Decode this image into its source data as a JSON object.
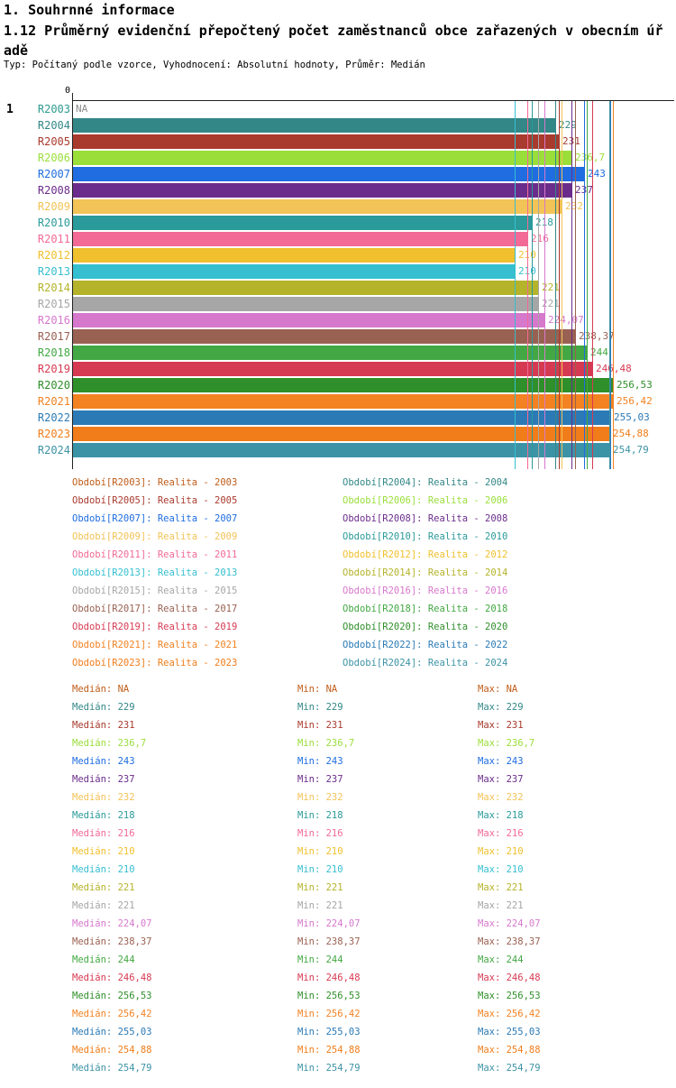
{
  "header": {
    "title": "1. Souhrnné informace",
    "subtitle": "1.12 Průměrný evidenční přepočtený počet zaměstnanců obce zařazených v obecním úřadě",
    "meta": "Typ: Počítaný podle vzorce, Vyhodnocení: Absolutní hodnoty, Průměr: Medián"
  },
  "chart": {
    "index_label": "1",
    "axis_zero_label": "0"
  },
  "stats_labels": {
    "median": "Medián:",
    "min": "Min:",
    "max": "Max:"
  },
  "chart_data": {
    "type": "bar",
    "orientation": "horizontal",
    "title": "1.12 Průměrný evidenční přepočtený počet zaměstnanců obce zařazených v obecním úřadě",
    "xlabel": "",
    "ylabel": "",
    "xlim": [
      0,
      270
    ],
    "x_axis_ticks_visible": [
      "0"
    ],
    "legend_position": "below-two-columns",
    "note": "Medián, Min and Max equal each series value; a vertical marker line is drawn at each value in the series color",
    "categories": [
      "R2003",
      "R2004",
      "R2005",
      "R2006",
      "R2007",
      "R2008",
      "R2009",
      "R2010",
      "R2011",
      "R2012",
      "R2013",
      "R2014",
      "R2015",
      "R2016",
      "R2017",
      "R2018",
      "R2019",
      "R2020",
      "R2021",
      "R2022",
      "R2023",
      "R2024"
    ],
    "series": [
      {
        "category": "R2003",
        "legend_label": "Období[R2003]: Realita - 2003",
        "value": null,
        "display": "NA",
        "color": "#bf5b17",
        "label_color": "#2e9b8f"
      },
      {
        "category": "R2004",
        "legend_label": "Období[R2004]: Realita - 2004",
        "value": 229,
        "display": "229",
        "color": "#338787"
      },
      {
        "category": "R2005",
        "legend_label": "Období[R2005]: Realita - 2005",
        "value": 231,
        "display": "231",
        "color": "#a93a2e"
      },
      {
        "category": "R2006",
        "legend_label": "Období[R2006]: Realita - 2006",
        "value": 236.7,
        "display": "236,7",
        "color": "#9ade3a"
      },
      {
        "category": "R2007",
        "legend_label": "Období[R2007]: Realita - 2007",
        "value": 243,
        "display": "243",
        "color": "#1f6de0"
      },
      {
        "category": "R2008",
        "legend_label": "Období[R2008]: Realita - 2008",
        "value": 237,
        "display": "237",
        "color": "#6b2d8b"
      },
      {
        "category": "R2009",
        "legend_label": "Období[R2009]: Realita - 2009",
        "value": 232,
        "display": "232",
        "color": "#f2c357"
      },
      {
        "category": "R2010",
        "legend_label": "Období[R2010]: Realita - 2010",
        "value": 218,
        "display": "218",
        "color": "#2a9a9a"
      },
      {
        "category": "R2011",
        "legend_label": "Období[R2011]: Realita - 2011",
        "value": 216,
        "display": "216",
        "color": "#f26a95"
      },
      {
        "category": "R2012",
        "legend_label": "Období[R2012]: Realita - 2012",
        "value": 210,
        "display": "210",
        "color": "#f0c02e"
      },
      {
        "category": "R2013",
        "legend_label": "Období[R2013]: Realita - 2013",
        "value": 210,
        "display": "210",
        "color": "#35bfd0"
      },
      {
        "category": "R2014",
        "legend_label": "Období[R2014]: Realita - 2014",
        "value": 221,
        "display": "221",
        "color": "#b4b32a"
      },
      {
        "category": "R2015",
        "legend_label": "Období[R2015]: Realita - 2015",
        "value": 221,
        "display": "221",
        "color": "#a6a6a6"
      },
      {
        "category": "R2016",
        "legend_label": "Období[R2016]: Realita - 2016",
        "value": 224.07,
        "display": "224,07",
        "color": "#d678cc"
      },
      {
        "category": "R2017",
        "legend_label": "Období[R2017]: Realita - 2017",
        "value": 238.37,
        "display": "238,37",
        "color": "#996152"
      },
      {
        "category": "R2018",
        "legend_label": "Období[R2018]: Realita - 2018",
        "value": 244,
        "display": "244",
        "color": "#43a843"
      },
      {
        "category": "R2019",
        "legend_label": "Období[R2019]: Realita - 2019",
        "value": 246.48,
        "display": "246,48",
        "color": "#d63a52"
      },
      {
        "category": "R2020",
        "legend_label": "Období[R2020]: Realita - 2020",
        "value": 256.53,
        "display": "256,53",
        "color": "#2f8f2a"
      },
      {
        "category": "R2021",
        "legend_label": "Období[R2021]: Realita - 2021",
        "value": 256.42,
        "display": "256,42",
        "color": "#f28222"
      },
      {
        "category": "R2022",
        "legend_label": "Období[R2022]: Realita - 2022",
        "value": 255.03,
        "display": "255,03",
        "color": "#2b7ab5"
      },
      {
        "category": "R2023",
        "legend_label": "Období[R2023]: Realita - 2023",
        "value": 254.88,
        "display": "254,88",
        "color": "#f07d1a"
      },
      {
        "category": "R2024",
        "legend_label": "Období[R2024]: Realita - 2024",
        "value": 254.79,
        "display": "254,79",
        "color": "#3d93a6"
      }
    ]
  }
}
